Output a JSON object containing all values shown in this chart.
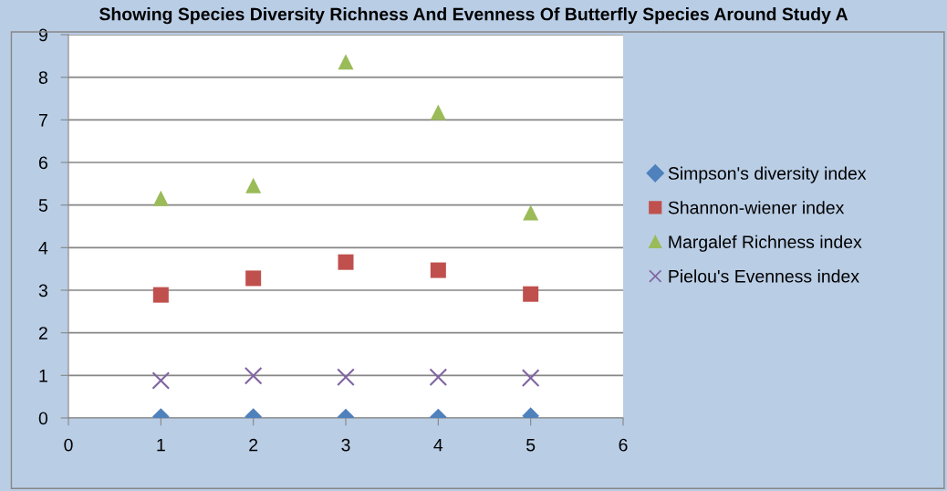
{
  "chart_data": {
    "type": "scatter",
    "title": "Showing Species Diversity Richness And Evenness Of Butterfly Species Around Study A",
    "x": [
      1,
      2,
      3,
      4,
      5
    ],
    "series": [
      {
        "name": "Simpson's diversity index",
        "color": "#4f81bd",
        "marker": "diamond",
        "values": [
          0.03,
          0.03,
          0.02,
          0.02,
          0.05
        ]
      },
      {
        "name": "Shannon-wiener index",
        "color": "#c0504d",
        "marker": "square",
        "values": [
          2.89,
          3.28,
          3.66,
          3.47,
          2.91
        ]
      },
      {
        "name": "Margalef Richness index",
        "color": "#9bbb59",
        "marker": "triangle",
        "values": [
          5.16,
          5.46,
          8.36,
          7.18,
          4.82
        ]
      },
      {
        "name": "Pielou's Evenness index",
        "color": "#8064a2",
        "marker": "cross",
        "values": [
          0.88,
          0.99,
          0.96,
          0.96,
          0.94
        ]
      }
    ],
    "xlim": [
      0,
      6
    ],
    "xticks": [
      0,
      1,
      2,
      3,
      4,
      5,
      6
    ],
    "ylim": [
      0,
      9
    ],
    "yticks": [
      0,
      1,
      2,
      3,
      4,
      5,
      6,
      7,
      8,
      9
    ],
    "grid": "y",
    "legend": "right"
  }
}
